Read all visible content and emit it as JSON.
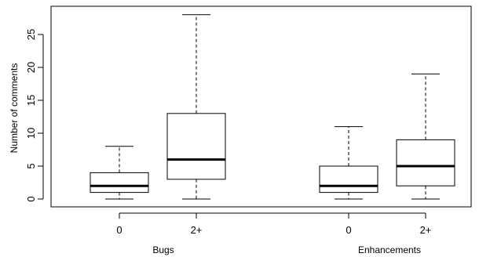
{
  "chart_data": {
    "type": "boxplot",
    "ylabel": "Number of comments",
    "ylim": [
      0,
      28
    ],
    "y_ticks": [
      0,
      5,
      10,
      15,
      20,
      25
    ],
    "grid": false,
    "groups": [
      {
        "label": "Bugs",
        "boxes": [
          {
            "category": "0",
            "min": 0,
            "q1": 1,
            "median": 2,
            "q3": 4,
            "max": 8
          },
          {
            "category": "2+",
            "min": 0,
            "q1": 3,
            "median": 6,
            "q3": 13,
            "max": 28
          }
        ]
      },
      {
        "label": "Enhancements",
        "boxes": [
          {
            "category": "0",
            "min": 0,
            "q1": 1,
            "median": 2,
            "q3": 5,
            "max": 11
          },
          {
            "category": "2+",
            "min": 0,
            "q1": 2,
            "median": 5,
            "q3": 9,
            "max": 19
          }
        ]
      }
    ]
  }
}
